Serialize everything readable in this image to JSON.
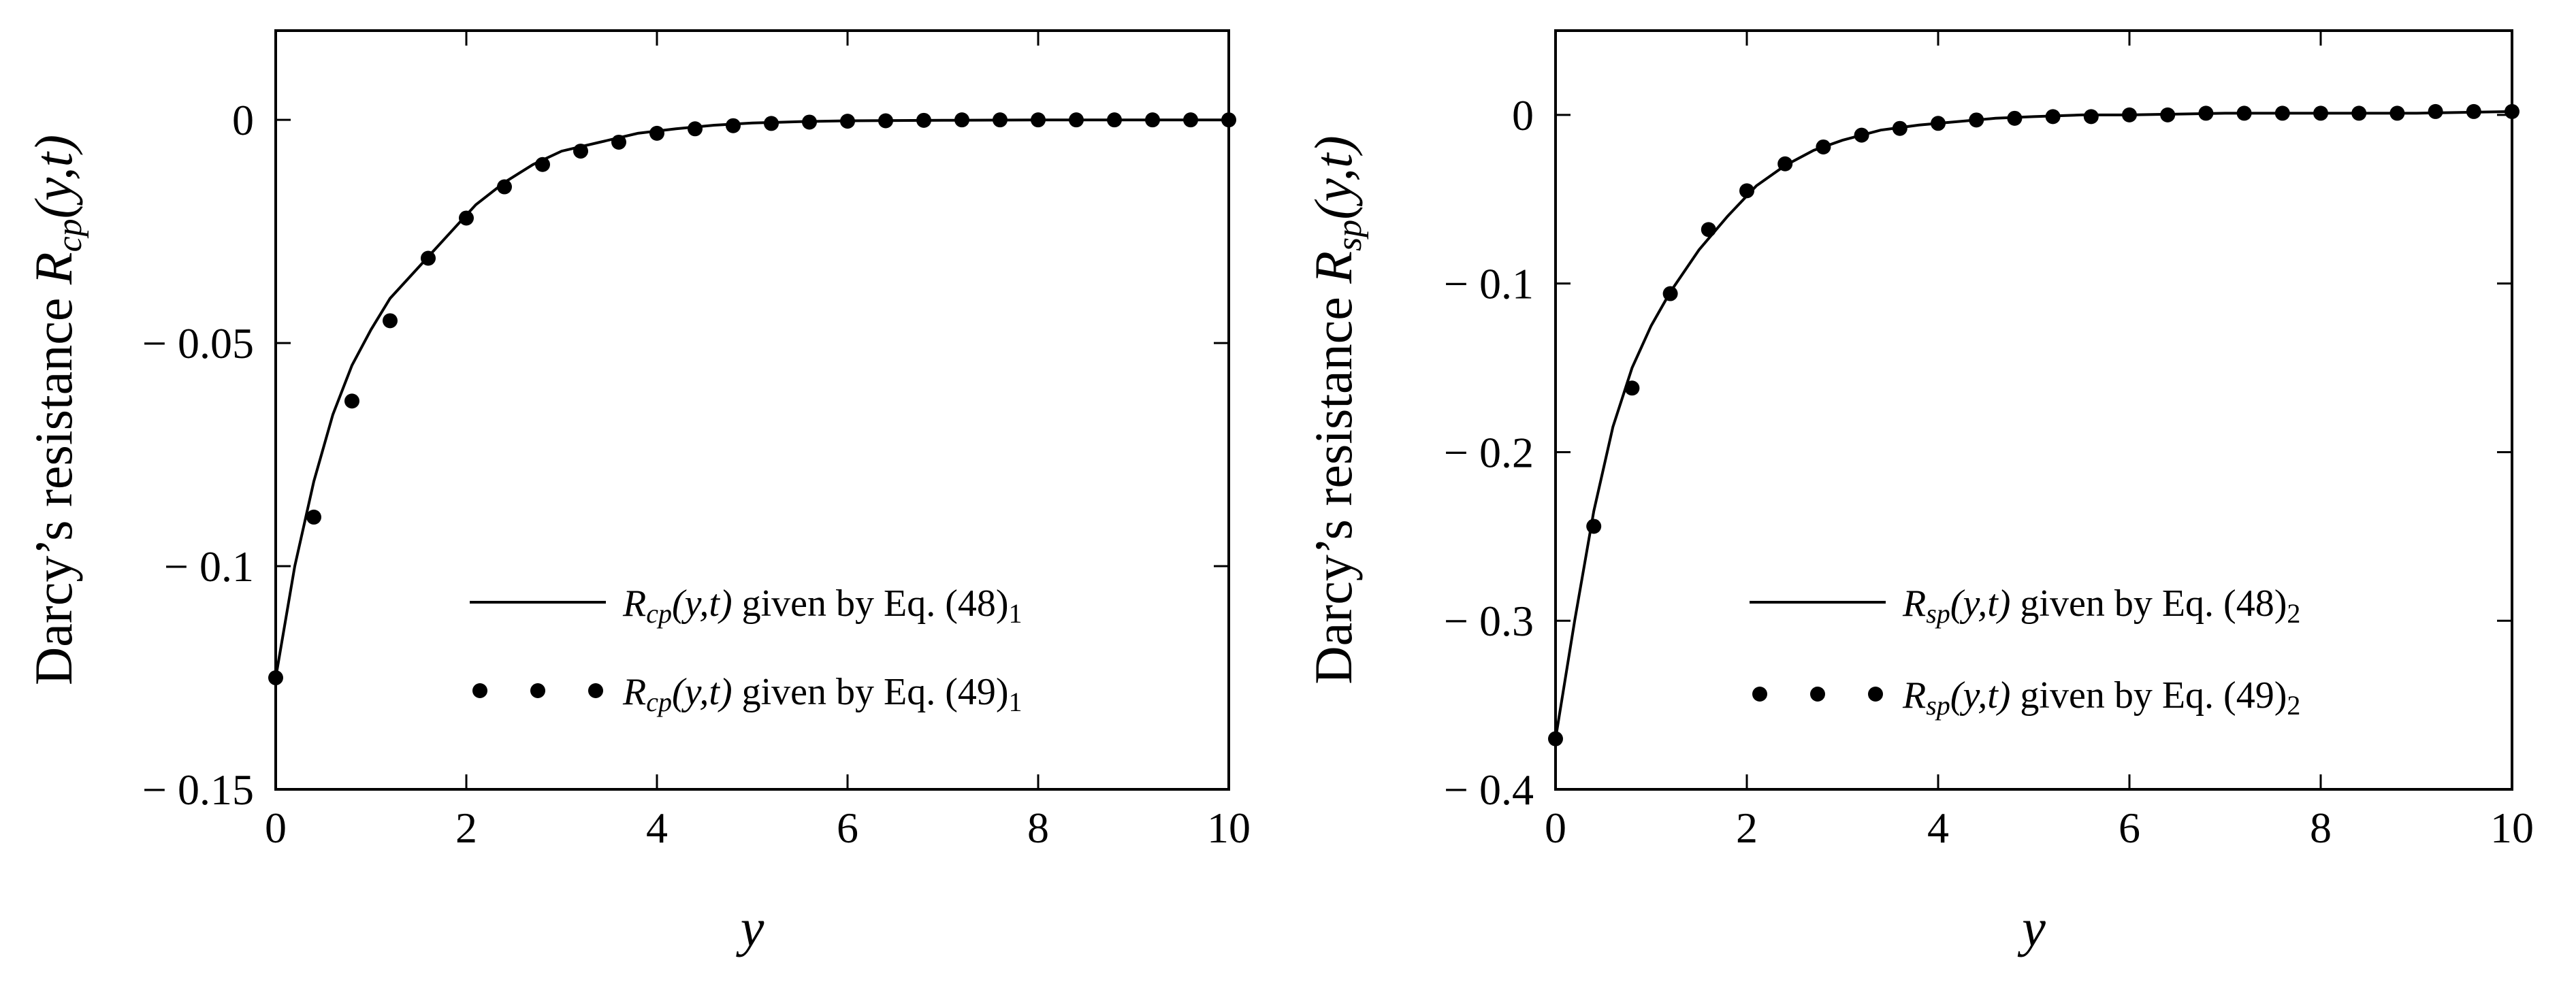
{
  "chart_data": [
    {
      "type": "line",
      "xlabel": "y",
      "ylabel": "Darcy’s resistance R_cp(y,t)",
      "ylabel_parts": {
        "prefix": "Darcy’s resistance ",
        "symbol": "R",
        "sub": "cp",
        "args": "(y,t)"
      },
      "xlim": [
        0,
        10
      ],
      "ylim": [
        -0.15,
        0.02
      ],
      "xticks": [
        0,
        2,
        4,
        6,
        8,
        10
      ],
      "xtick_labels": [
        "0",
        "2",
        "4",
        "6",
        "8",
        "10"
      ],
      "yticks": [
        0,
        -0.05,
        -0.1,
        -0.15
      ],
      "ytick_labels": [
        "0",
        "− 0.05",
        "− 0.1",
        "− 0.15"
      ],
      "grid": false,
      "legend_position": "lower-right",
      "legend": [
        {
          "style": "line",
          "symbol": "R",
          "sub": "cp",
          "args": "(y,t)",
          "text": " given by Eq. (48)",
          "tail_sub": "1"
        },
        {
          "style": "markers",
          "symbol": "R",
          "sub": "cp",
          "args": "(y,t)",
          "text": " given by Eq. (49)",
          "tail_sub": "1"
        }
      ],
      "series": [
        {
          "style": "line",
          "x": [
            0,
            0.2,
            0.4,
            0.6,
            0.8,
            1.0,
            1.2,
            1.5,
            1.8,
            2.1,
            2.4,
            2.7,
            3.0,
            3.4,
            3.8,
            4.2,
            4.6,
            5.0,
            5.5,
            6.0,
            7.0,
            8.0,
            9.0,
            10.0
          ],
          "y": [
            -0.125,
            -0.1,
            -0.081,
            -0.066,
            -0.055,
            -0.047,
            -0.04,
            -0.033,
            -0.026,
            -0.019,
            -0.014,
            -0.01,
            -0.007,
            -0.005,
            -0.003,
            -0.002,
            -0.0012,
            -0.0007,
            -0.0004,
            -0.0002,
            -0.0001,
            0,
            0,
            0
          ]
        },
        {
          "style": "markers",
          "x": [
            0,
            0.4,
            0.8,
            1.2,
            1.6,
            2.0,
            2.4,
            2.8,
            3.2,
            3.6,
            4.0,
            4.4,
            4.8,
            5.2,
            5.6,
            6.0,
            6.4,
            6.8,
            7.2,
            7.6,
            8.0,
            8.4,
            8.8,
            9.2,
            9.6,
            10.0
          ],
          "y": [
            -0.125,
            -0.089,
            -0.063,
            -0.045,
            -0.031,
            -0.022,
            -0.015,
            -0.01,
            -0.007,
            -0.005,
            -0.003,
            -0.002,
            -0.0013,
            -0.0008,
            -0.0005,
            -0.0003,
            -0.0002,
            -0.0001,
            0,
            0,
            0,
            0,
            0,
            0,
            0,
            0
          ]
        }
      ]
    },
    {
      "type": "line",
      "xlabel": "y",
      "ylabel": "Darcy’s resistance R_sp(y,t)",
      "ylabel_parts": {
        "prefix": "Darcy’s resistance ",
        "symbol": "R",
        "sub": "sp",
        "args": "(y,t)"
      },
      "xlim": [
        0,
        10
      ],
      "ylim": [
        -0.4,
        0.05
      ],
      "xticks": [
        0,
        2,
        4,
        6,
        8,
        10
      ],
      "xtick_labels": [
        "0",
        "2",
        "4",
        "6",
        "8",
        "10"
      ],
      "yticks": [
        0,
        -0.1,
        -0.2,
        -0.3,
        -0.4
      ],
      "ytick_labels": [
        "0",
        "− 0.1",
        "− 0.2",
        "− 0.3",
        "− 0.4"
      ],
      "grid": false,
      "legend_position": "lower-right",
      "legend": [
        {
          "style": "line",
          "symbol": "R",
          "sub": "sp",
          "args": "(y,t)",
          "text": " given by Eq. (48)",
          "tail_sub": "2"
        },
        {
          "style": "markers",
          "symbol": "R",
          "sub": "sp",
          "args": "(y,t)",
          "text": " given by Eq. (49)",
          "tail_sub": "2"
        }
      ],
      "series": [
        {
          "style": "line",
          "x": [
            0,
            0.2,
            0.4,
            0.6,
            0.8,
            1.0,
            1.2,
            1.5,
            1.8,
            2.1,
            2.4,
            2.7,
            3.0,
            3.4,
            3.8,
            4.2,
            4.6,
            5.0,
            5.5,
            6.0,
            7.0,
            8.0,
            9.0,
            10.0
          ],
          "y": [
            -0.37,
            -0.3,
            -0.235,
            -0.185,
            -0.15,
            -0.125,
            -0.105,
            -0.08,
            -0.06,
            -0.042,
            -0.03,
            -0.021,
            -0.015,
            -0.009,
            -0.006,
            -0.004,
            -0.002,
            -0.001,
            0,
            0,
            0.001,
            0.001,
            0.001,
            0.002
          ]
        },
        {
          "style": "markers",
          "x": [
            0,
            0.4,
            0.8,
            1.2,
            1.6,
            2.0,
            2.4,
            2.8,
            3.2,
            3.6,
            4.0,
            4.4,
            4.8,
            5.2,
            5.6,
            6.0,
            6.4,
            6.8,
            7.2,
            7.6,
            8.0,
            8.4,
            8.8,
            9.2,
            9.6,
            10.0
          ],
          "y": [
            -0.37,
            -0.244,
            -0.162,
            -0.106,
            -0.068,
            -0.045,
            -0.029,
            -0.019,
            -0.012,
            -0.008,
            -0.005,
            -0.003,
            -0.002,
            -0.001,
            -0.001,
            0,
            0,
            0.001,
            0.001,
            0.001,
            0.001,
            0.001,
            0.001,
            0.002,
            0.002,
            0.002
          ]
        }
      ]
    }
  ]
}
